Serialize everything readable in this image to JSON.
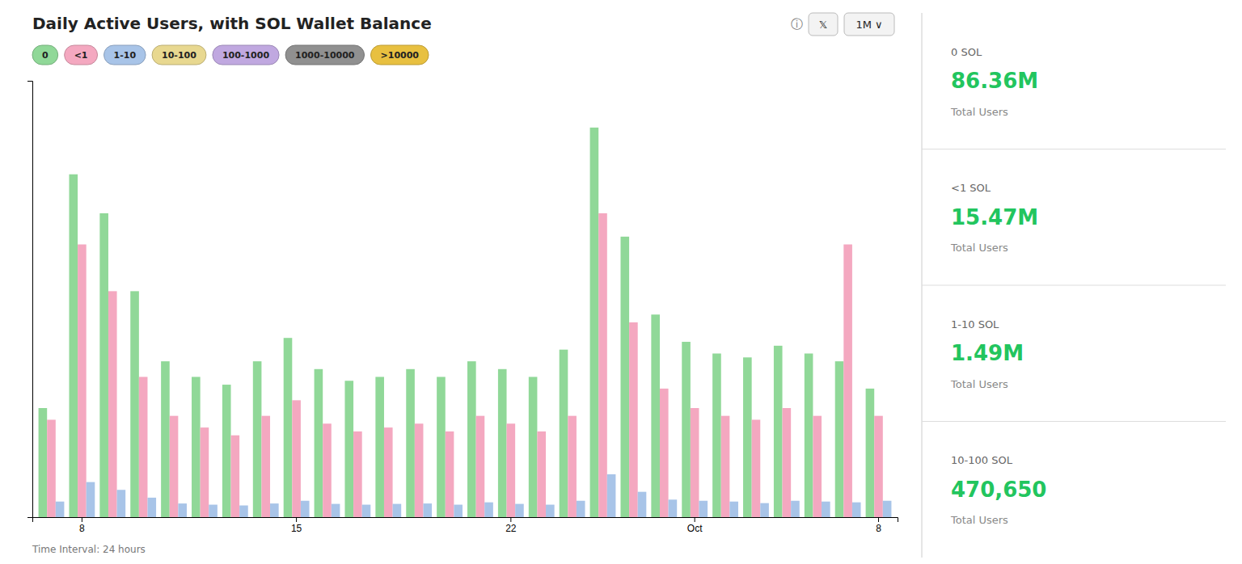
{
  "chart_data": {
    "type": "bar",
    "title": "Daily Active Users, with SOL Wallet Balance",
    "categories": [
      null,
      "8",
      null,
      null,
      null,
      null,
      null,
      null,
      "15",
      null,
      null,
      null,
      null,
      null,
      null,
      "22",
      null,
      null,
      null,
      null,
      null,
      "Oct",
      null,
      null,
      null,
      null,
      null,
      "8"
    ],
    "series": [
      {
        "name": "0",
        "color": "#90d898",
        "values": [
          0.28,
          0.88,
          0.78,
          0.58,
          0.4,
          0.36,
          0.34,
          0.4,
          0.46,
          0.38,
          0.35,
          0.36,
          0.38,
          0.36,
          0.4,
          0.38,
          0.36,
          0.43,
          1.0,
          0.72,
          0.52,
          0.45,
          0.42,
          0.41,
          0.44,
          0.42,
          0.4,
          0.33
        ]
      },
      {
        "name": "<1",
        "color": "#f4a8c0",
        "values": [
          0.25,
          0.7,
          0.58,
          0.36,
          0.26,
          0.23,
          0.21,
          0.26,
          0.3,
          0.24,
          0.22,
          0.23,
          0.24,
          0.22,
          0.26,
          0.24,
          0.22,
          0.26,
          0.78,
          0.5,
          0.33,
          0.28,
          0.26,
          0.25,
          0.28,
          0.26,
          0.7,
          0.26
        ]
      },
      {
        "name": "1-10",
        "color": "#a8c4e8",
        "values": [
          0.04,
          0.09,
          0.07,
          0.05,
          0.035,
          0.032,
          0.03,
          0.035,
          0.042,
          0.034,
          0.032,
          0.034,
          0.035,
          0.032,
          0.038,
          0.034,
          0.032,
          0.042,
          0.11,
          0.065,
          0.045,
          0.042,
          0.04,
          0.036,
          0.042,
          0.04,
          0.038,
          0.042
        ]
      }
    ],
    "ylim": [
      0,
      1.12
    ],
    "yticks": [],
    "grid": false,
    "tick_labels": "x",
    "legend": "top",
    "annotations": [
      {
        "text": "ⓘ"
      },
      {
        "text": "𝕏"
      },
      {
        "text": "1M ∨"
      },
      {
        "text": "10-100",
        "color": "#e8d890"
      },
      {
        "text": "100-1000",
        "color": "#c0a8e0"
      },
      {
        "text": "1000-10000",
        "color": "#909090"
      },
      {
        "text": ">10000",
        "color": "#e8c040"
      },
      {
        "text": "0 SOL"
      },
      {
        "text": "86.36M",
        "color": "#22c55e"
      },
      {
        "text": "Total Users"
      },
      {
        "text": "<1 SOL"
      },
      {
        "text": "15.47M",
        "color": "#22c55e"
      },
      {
        "text": "Total Users"
      },
      {
        "text": "1-10 SOL"
      },
      {
        "text": "1.49M",
        "color": "#22c55e"
      },
      {
        "text": "Total Users"
      },
      {
        "text": "10-100 SOL"
      },
      {
        "text": "470,650",
        "color": "#22c55e"
      },
      {
        "text": "Total Users"
      },
      {
        "text": "Time Interval: 24 hours"
      }
    ]
  }
}
